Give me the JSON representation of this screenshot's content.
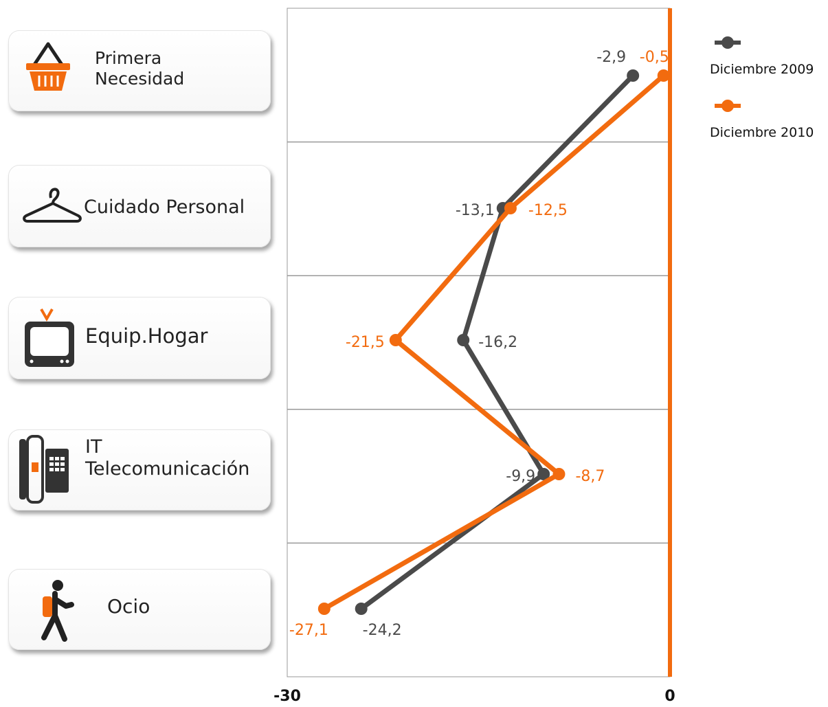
{
  "categories_panel": [
    {
      "lines": [
        "Primera",
        "Necesidad"
      ],
      "icon": "basket-icon"
    },
    {
      "lines": [
        "Cuidado Personal"
      ],
      "icon": "hanger-icon"
    },
    {
      "lines": [
        "Equip.Hogar"
      ],
      "icon": "tv-icon"
    },
    {
      "lines": [
        "IT",
        "Telecomunicación"
      ],
      "icon": "phone-icon"
    },
    {
      "lines": [
        "Ocio"
      ],
      "icon": "walker-icon"
    }
  ],
  "colors": {
    "series_2009": "#4a4a4a",
    "series_2010": "#f26b0f",
    "grid": "#999999"
  },
  "chart_data": {
    "type": "line",
    "orientation": "horizontal-values",
    "categories": [
      "Primera Necesidad",
      "Cuidado Personal",
      "Equip.Hogar",
      "IT Telecomunicación",
      "Ocio"
    ],
    "series": [
      {
        "name": "Diciembre 2009",
        "values": [
          -2.9,
          -13.1,
          -16.2,
          -9.9,
          -24.2
        ],
        "labels": [
          "-2,9",
          "-13,1",
          "-16,2",
          "-9,9",
          "-24,2"
        ],
        "color": "#4a4a4a"
      },
      {
        "name": "Diciembre 2010",
        "values": [
          -0.5,
          -12.5,
          -21.5,
          -8.7,
          -27.1
        ],
        "labels": [
          "-0,5",
          "-12,5",
          "-21,5",
          "-8,7",
          "-27,1"
        ],
        "color": "#f26b0f"
      }
    ],
    "xlim": [
      -30,
      0
    ],
    "x_tick_labels": [
      "-30",
      "0"
    ],
    "legend_position": "top-right",
    "grid": true
  }
}
